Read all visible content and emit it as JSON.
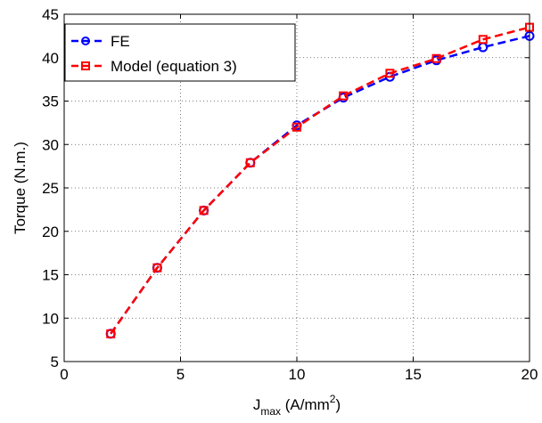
{
  "chart_data": {
    "type": "line",
    "xlabel": {
      "main": "J",
      "sub": "max",
      "units_pre": " (A/mm",
      "sup": "2",
      "units_post": ")"
    },
    "ylabel": "Torque (N.m.)",
    "xlim": [
      0,
      20
    ],
    "ylim": [
      5,
      45
    ],
    "xticks": [
      0,
      5,
      10,
      15,
      20
    ],
    "yticks": [
      5,
      10,
      15,
      20,
      25,
      30,
      35,
      40,
      45
    ],
    "grid": true,
    "legend_position": "top-left",
    "series": [
      {
        "name": "FE",
        "color": "#0000ff",
        "marker": "circle",
        "linestyle": "dashed",
        "x": [
          2,
          4,
          6,
          8,
          10,
          12,
          14,
          16,
          18,
          20
        ],
        "y": [
          8.2,
          15.8,
          22.4,
          27.9,
          32.2,
          35.4,
          37.8,
          39.7,
          41.2,
          42.5
        ]
      },
      {
        "name": "Model (equation 3)",
        "color": "#ff0000",
        "marker": "square",
        "linestyle": "dashed",
        "x": [
          2,
          4,
          6,
          8,
          10,
          12,
          14,
          16,
          18,
          20
        ],
        "y": [
          8.2,
          15.8,
          22.4,
          27.9,
          32.0,
          35.6,
          38.2,
          39.9,
          42.1,
          43.5
        ]
      }
    ]
  }
}
